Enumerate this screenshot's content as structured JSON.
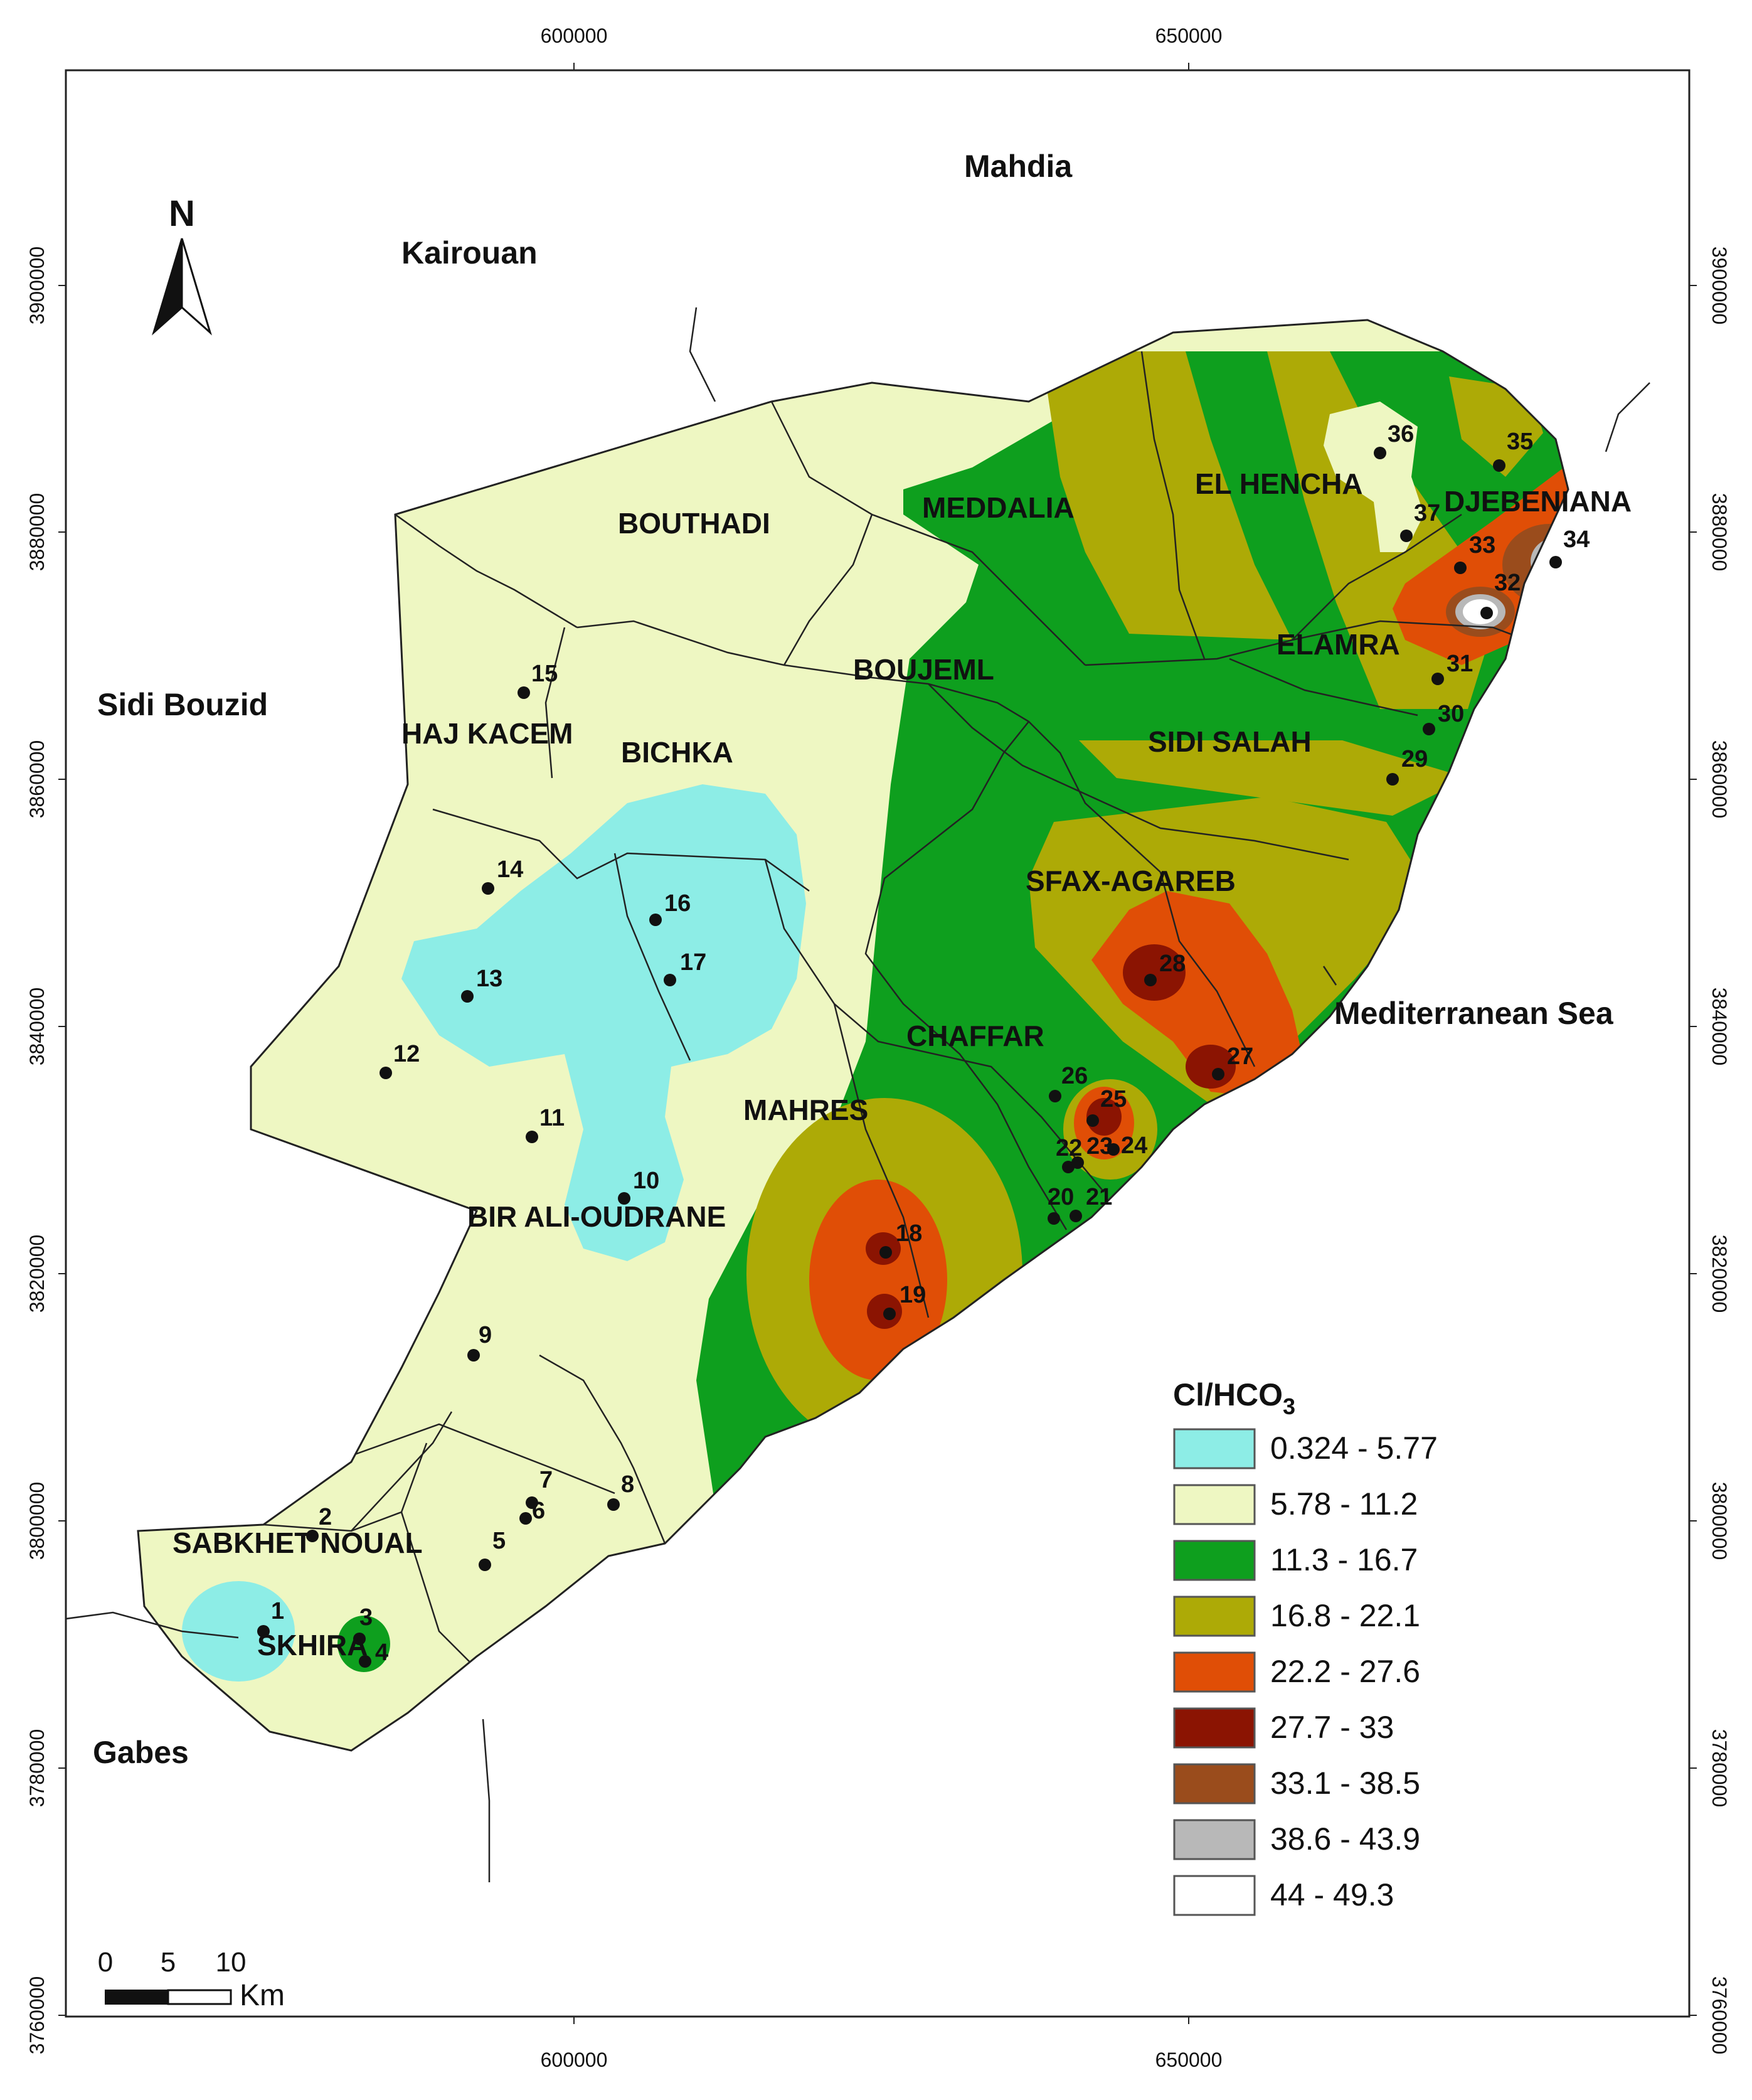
{
  "axes": {
    "x_ticks": [
      "600000",
      "650000"
    ],
    "y_ticks": [
      "3900000",
      "3880000",
      "3860000",
      "3840000",
      "3820000",
      "3800000",
      "3780000",
      "3760000"
    ]
  },
  "north_arrow": {
    "label": "N",
    "icon": "north-arrow-icon"
  },
  "regions_outside": [
    "Mahdia",
    "Kairouan",
    "Sidi Bouzid",
    "Gabes",
    "Mediterranean Sea"
  ],
  "delegations": [
    "BOUTHADI",
    "MEDDALIA",
    "EL HENCHA",
    "DJEBENIANA",
    "BOUJEML",
    "ELAMRA",
    "HAJ KACEM",
    "BICHKA",
    "SIDI SALAH",
    "SFAX-AGAREB",
    "CHAFFAR",
    "MAHRES",
    "BIR ALI-OUDRANE",
    "SABKHET NOUAL",
    "SKHIRA"
  ],
  "wells": [
    "1",
    "2",
    "3",
    "4",
    "5",
    "6",
    "7",
    "8",
    "9",
    "10",
    "11",
    "12",
    "13",
    "14",
    "15",
    "16",
    "17",
    "18",
    "19",
    "20",
    "21",
    "22",
    "23",
    "24",
    "25",
    "26",
    "27",
    "28",
    "29",
    "30",
    "31",
    "32",
    "33",
    "34",
    "35",
    "36",
    "37"
  ],
  "legend": {
    "title_main": "Cl/HCO",
    "title_sub": "3",
    "classes": [
      {
        "label": "0.324 - 5.77",
        "color": "#8DEDE6"
      },
      {
        "label": "5.78 - 11.2",
        "color": "#EEF7C2"
      },
      {
        "label": "11.3 - 16.7",
        "color": "#0E9F1E"
      },
      {
        "label": "16.8 - 22.1",
        "color": "#ADAA06"
      },
      {
        "label": "22.2 - 27.6",
        "color": "#E04E06"
      },
      {
        "label": "27.7 - 33",
        "color": "#8B1402"
      },
      {
        "label": "33.1 - 38.5",
        "color": "#9A4C1C"
      },
      {
        "label": "38.6 - 43.9",
        "color": "#B8B8B8"
      },
      {
        "label": "44 - 49.3",
        "color": "#FFFFFF"
      }
    ]
  },
  "scale_bar": {
    "ticks": [
      "0",
      "5",
      "10"
    ],
    "unit": "Km"
  }
}
